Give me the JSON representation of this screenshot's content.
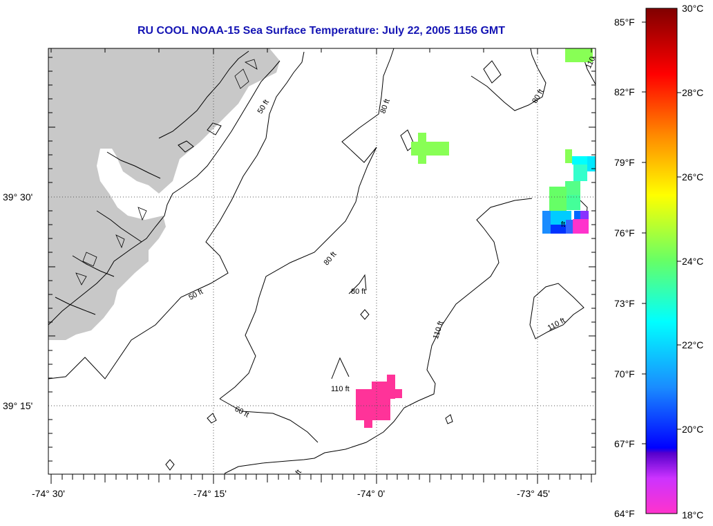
{
  "title": "RU COOL  NOAA-15  Sea Surface Temperature:  July 22, 2005 1156 GMT",
  "lat_labels": [
    "39° 30'",
    "39° 15'"
  ],
  "lon_labels": [
    "-74° 30'",
    "-74° 15'",
    "-74° 0'",
    "-73° 45'"
  ],
  "contour_labels": [
    "50 ft",
    "50 ft",
    "80 ft",
    "80 ft",
    "80 ft",
    "80 ft",
    "110 ft",
    "110 ft",
    "110",
    "110 ft",
    "60 ft",
    "ft",
    "ft"
  ],
  "colorbar": {
    "fahrenheit": [
      "85°F",
      "82°F",
      "79°F",
      "76°F",
      "73°F",
      "70°F",
      "67°F",
      "64°F"
    ],
    "celsius": [
      "30°C",
      "28°C",
      "26°C",
      "24°C",
      "22°C",
      "20°C",
      "18°C"
    ]
  },
  "colors": {
    "land": "#c8c8c8",
    "title": "#1414b4",
    "patch_pink": "#ff3399",
    "patch_green": "#88ff55"
  }
}
